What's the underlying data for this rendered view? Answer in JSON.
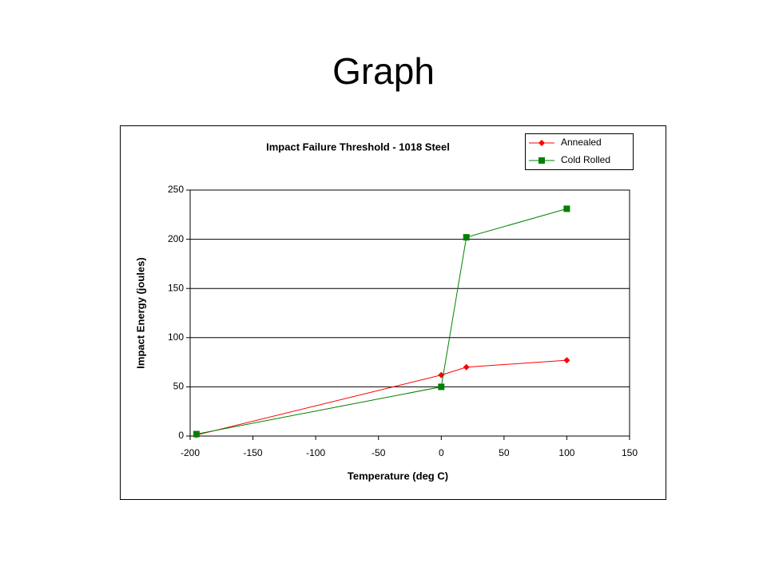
{
  "slide": {
    "title": "Graph"
  },
  "chart_data": {
    "type": "line",
    "title": "Impact Failure Threshold - 1018 Steel",
    "x_label": "Temperature (deg C)",
    "y_label": "Impact Energy (joules)",
    "series": [
      {
        "name": "Annealed",
        "color": "#ff0000",
        "marker": "diamond",
        "x": [
          -195,
          0,
          20,
          100
        ],
        "values": [
          1,
          62,
          70,
          77
        ]
      },
      {
        "name": "Cold Rolled",
        "color": "#008000",
        "marker": "square",
        "x": [
          -195,
          0,
          20,
          100
        ],
        "values": [
          2,
          50,
          202,
          231
        ]
      }
    ],
    "xlim": [
      -200,
      150
    ],
    "xticks": [
      -200,
      -150,
      -100,
      -50,
      0,
      50,
      100,
      150
    ],
    "ylim": [
      0,
      250
    ],
    "yticks": [
      0,
      50,
      100,
      150,
      200,
      250
    ],
    "grid": true,
    "legend": "top-right"
  }
}
